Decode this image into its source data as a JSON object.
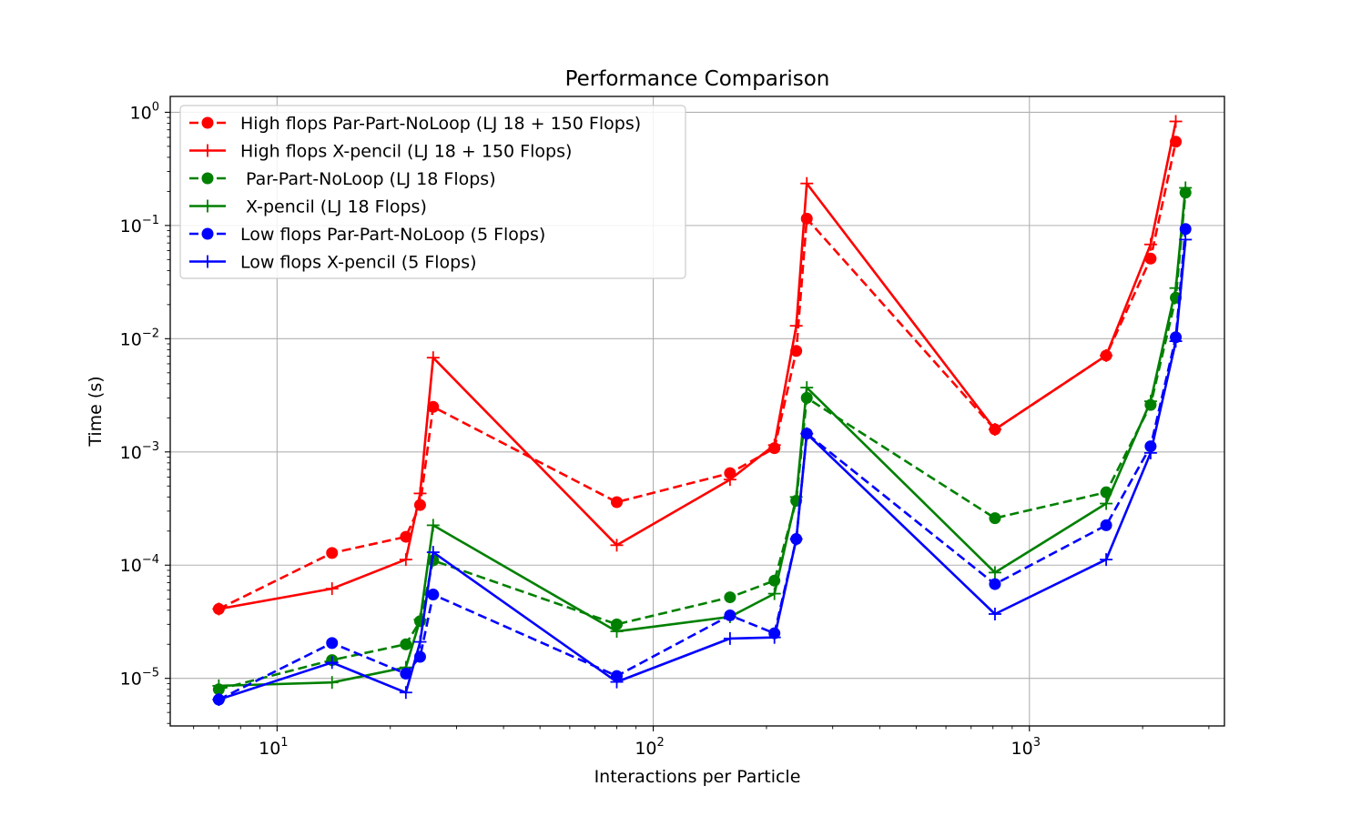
{
  "chart_data": {
    "type": "line",
    "title": "Performance Comparison",
    "xlabel": "Interactions per Particle",
    "ylabel": "Time (s)",
    "xscale": "log",
    "yscale": "log",
    "xlim": [
      5.2,
      3300
    ],
    "ylim": [
      3.8e-06,
      1.38
    ],
    "grid": true,
    "legend_position": "upper-left",
    "x_ticks": [
      {
        "value": 10,
        "base": "10",
        "exp": "1"
      },
      {
        "value": 100,
        "base": "10",
        "exp": "2"
      },
      {
        "value": 1000,
        "base": "10",
        "exp": "3"
      }
    ],
    "y_ticks": [
      {
        "value": 1e-05,
        "base": "10",
        "exp": "−5"
      },
      {
        "value": 0.0001,
        "base": "10",
        "exp": "−4"
      },
      {
        "value": 0.001,
        "base": "10",
        "exp": "−3"
      },
      {
        "value": 0.01,
        "base": "10",
        "exp": "−2"
      },
      {
        "value": 0.1,
        "base": "10",
        "exp": "−1"
      },
      {
        "value": 1,
        "base": "10",
        "exp": "0"
      }
    ],
    "series": [
      {
        "name": "High flops Par-Part-NoLoop (LJ 18 + 150 Flops)",
        "color": "#ff0000",
        "style": "dashed",
        "marker": "circle",
        "x": [
          7,
          14,
          22,
          24,
          26,
          80,
          160,
          210,
          240,
          256,
          810,
          1600,
          2100,
          2450,
          2600
        ],
        "y": [
          4.1e-05,
          0.000128,
          0.000178,
          0.00034,
          0.0025,
          0.00036,
          0.00065,
          0.00108,
          0.0078,
          0.115,
          0.00158,
          0.0071,
          0.051,
          0.55,
          null
        ]
      },
      {
        "name": "High flops X-pencil (LJ 18 + 150 Flops)",
        "color": "#ff0000",
        "style": "solid",
        "marker": "plus",
        "x": [
          7,
          14,
          22,
          24,
          26,
          80,
          160,
          210,
          240,
          256,
          810,
          1600,
          2100,
          2450,
          2600
        ],
        "y": [
          4.1e-05,
          6.2e-05,
          0.000112,
          0.00043,
          0.0068,
          0.00015,
          0.00057,
          0.00115,
          0.013,
          0.235,
          0.00158,
          0.0071,
          0.068,
          0.83,
          null
        ]
      },
      {
        "name": " Par-Part-NoLoop (LJ 18 Flops)",
        "color": "#008000",
        "style": "dashed",
        "marker": "circle",
        "x": [
          7,
          14,
          22,
          24,
          26,
          80,
          160,
          210,
          240,
          256,
          810,
          1600,
          2100,
          2450,
          2600
        ],
        "y": [
          8e-06,
          1.45e-05,
          2e-05,
          3.2e-05,
          0.00011,
          3e-05,
          5.2e-05,
          7.3e-05,
          0.00037,
          0.003,
          0.00026,
          0.00044,
          0.0026,
          0.023,
          0.195
        ]
      },
      {
        "name": " X-pencil (LJ 18 Flops)",
        "color": "#008000",
        "style": "solid",
        "marker": "plus",
        "x": [
          7,
          14,
          22,
          24,
          26,
          80,
          160,
          210,
          240,
          256,
          810,
          1600,
          2100,
          2450,
          2600
        ],
        "y": [
          8.6e-06,
          9.2e-06,
          1.25e-05,
          3.3e-05,
          0.000225,
          2.6e-05,
          3.5e-05,
          5.6e-05,
          0.0004,
          0.0037,
          8.6e-05,
          0.00035,
          0.0028,
          0.028,
          0.215
        ]
      },
      {
        "name": "Low flops Par-Part-NoLoop (5 Flops)",
        "color": "#0000ff",
        "style": "dashed",
        "marker": "circle",
        "x": [
          7,
          14,
          22,
          24,
          26,
          80,
          160,
          210,
          240,
          256,
          810,
          1600,
          2100,
          2450,
          2600
        ],
        "y": [
          6.5e-06,
          2.05e-05,
          1.1e-05,
          1.55e-05,
          5.5e-05,
          1.05e-05,
          3.6e-05,
          2.5e-05,
          0.00017,
          0.00145,
          6.8e-05,
          0.000225,
          0.00112,
          0.0103,
          0.093
        ]
      },
      {
        "name": "Low flops X-pencil (5 Flops)",
        "color": "#0000ff",
        "style": "solid",
        "marker": "plus",
        "x": [
          7,
          14,
          22,
          24,
          26,
          80,
          160,
          210,
          240,
          256,
          810,
          1600,
          2100,
          2450,
          2600
        ],
        "y": [
          6.5e-06,
          1.38e-05,
          7.5e-06,
          2.1e-05,
          0.00013,
          9.3e-06,
          2.25e-05,
          2.3e-05,
          0.00017,
          0.00145,
          3.7e-05,
          0.000112,
          0.00098,
          0.0095,
          0.075
        ]
      }
    ]
  }
}
